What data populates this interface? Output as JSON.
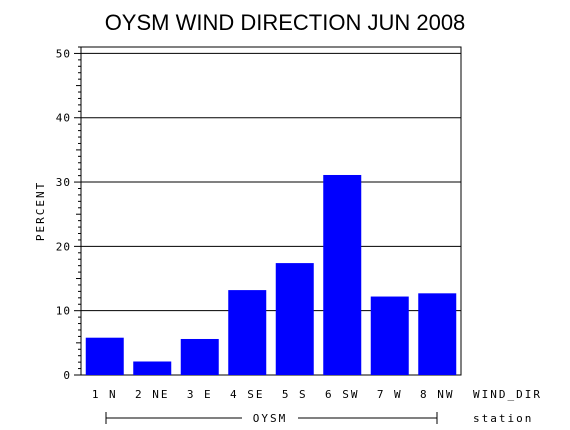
{
  "chart_data": {
    "type": "bar",
    "title": "OYSM WIND DIRECTION JUN 2008",
    "ylabel": "PERCENT",
    "xlabel": "WIND_DIR",
    "group_axis_label": "station",
    "group_name": "OYSM",
    "categories": [
      "1 N",
      "2 NE",
      "3 E",
      "4 SE",
      "5 S",
      "6 SW",
      "7 W",
      "8 NW"
    ],
    "values": [
      5.8,
      2.1,
      5.6,
      13.2,
      17.4,
      31.1,
      12.2,
      12.7
    ],
    "ylim": [
      0,
      51
    ],
    "yticks": [
      0,
      10,
      20,
      30,
      40,
      50
    ],
    "grid": true,
    "bar_color": "#0000ff",
    "axis_color": "#000000"
  }
}
